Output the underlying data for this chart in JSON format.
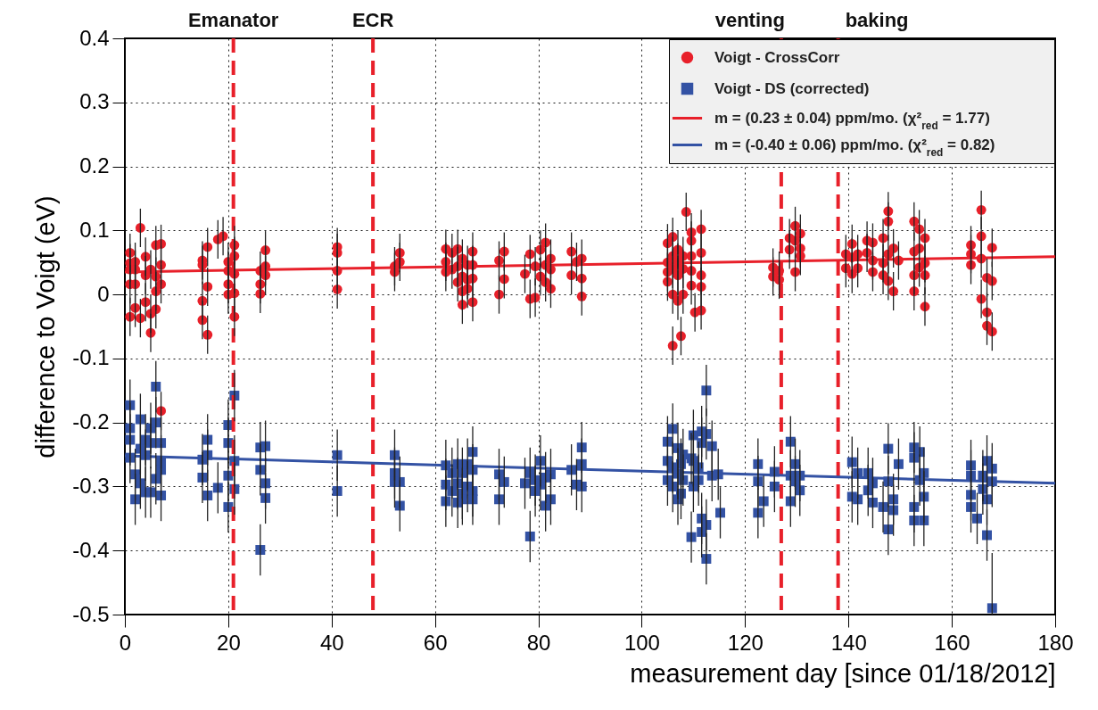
{
  "chart_data": {
    "type": "scatter",
    "xlabel": "measurement day [since 01/18/2012]",
    "ylabel": "difference to Voigt (eV)",
    "xlim": [
      0,
      180
    ],
    "ylim": [
      -0.5,
      0.4
    ],
    "xticks": [
      0,
      20,
      40,
      60,
      80,
      100,
      120,
      140,
      160,
      180
    ],
    "yticks": [
      -0.5,
      -0.4,
      -0.3,
      -0.2,
      -0.1,
      0,
      0.1,
      0.2,
      0.3,
      0.4
    ],
    "grid": true,
    "legend": "top right",
    "ref_lines": [
      {
        "axis": "x",
        "value": 21,
        "label": "Emanator",
        "color": "#e8202a",
        "line_style": "dashed"
      },
      {
        "axis": "x",
        "value": 48,
        "label": "ECR",
        "color": "#e8202a",
        "line_style": "dashed"
      },
      {
        "axis": "x",
        "value": 127,
        "label": "venting",
        "color": "#e8202a",
        "line_style": "dashed"
      },
      {
        "axis": "x",
        "value": 138,
        "label": "baking",
        "color": "#e8202a",
        "line_style": "dashed"
      }
    ],
    "series": [
      {
        "name": "Voigt - CrossCorr",
        "type": "scatter",
        "marker": "circle",
        "color": "#e8202a",
        "x": [
          1,
          1,
          1,
          1,
          1,
          2,
          2,
          2,
          2,
          3,
          3,
          4,
          4,
          4,
          5,
          5,
          5,
          6,
          6,
          6,
          6,
          7,
          7,
          7,
          7,
          15,
          15,
          15,
          15,
          16,
          16,
          16,
          18,
          19,
          20,
          20,
          20,
          20,
          21.2,
          21.2,
          21.2,
          21.2,
          21.2,
          26.2,
          26.2,
          26.2,
          27.2,
          27.2,
          27.2,
          41.1,
          41.1,
          41.1,
          41.1,
          52.2,
          52.2,
          53.2,
          53.2,
          62.1,
          62.1,
          62.1,
          63.3,
          63.3,
          64.4,
          64.4,
          64.4,
          65.3,
          65.3,
          65.3,
          65.3,
          66.3,
          66.3,
          66.3,
          67.3,
          67.3,
          67.3,
          67.3,
          72.4,
          72.4,
          73.4,
          73.4,
          77.4,
          78.4,
          78.4,
          79.4,
          79.4,
          80.4,
          80.4,
          81.4,
          81.4,
          81.4,
          82.4,
          82.4,
          82.4,
          86.4,
          86.4,
          87.4,
          88.4,
          88.4,
          88.4,
          105,
          105,
          105,
          105,
          106,
          106,
          106,
          106,
          106,
          107,
          107,
          107,
          107,
          107.6,
          108,
          108,
          108,
          108.6,
          109.6,
          109.6,
          109.6,
          109.6,
          109.6,
          110.3,
          111.5,
          111.5,
          111.5,
          111.5,
          111.5,
          125.4,
          125.4,
          126.6,
          126.6,
          128.6,
          128.6,
          129.7,
          129.7,
          129.7,
          130.7,
          130.7,
          130.7,
          139.5,
          139.5,
          140.7,
          140.7,
          140.7,
          141.8,
          141.8,
          143.6,
          143.6,
          144.7,
          144.7,
          144.7,
          146.7,
          146.7,
          146.7,
          147.7,
          147.7,
          147.7,
          147.7,
          148.7,
          148.7,
          149.7,
          152.7,
          152.7,
          152.7,
          152.7,
          153.7,
          153.7,
          153.7,
          154.8,
          154.8,
          154.8,
          154.8,
          163.7,
          163.7,
          163.7,
          165.7,
          165.7,
          165.7,
          165.7,
          166.8,
          166.8,
          166.8,
          167.8,
          167.8,
          167.8
        ],
        "values": [
          0.065,
          0.049,
          0.039,
          0.016,
          -0.035,
          0.051,
          0.039,
          0.016,
          -0.021,
          0.104,
          -0.037,
          0.059,
          0.03,
          -0.012,
          0.039,
          -0.03,
          -0.06,
          0.077,
          0.028,
          0.005,
          -0.023,
          0.079,
          0.046,
          0.016,
          -0.182,
          0.053,
          0.046,
          -0.01,
          -0.04,
          0.074,
          0.012,
          -0.063,
          0.086,
          0.091,
          0.051,
          0.037,
          0.016,
          0.0,
          0.077,
          0.06,
          0.032,
          0.002,
          -0.035,
          0.037,
          0.016,
          0.001,
          0.069,
          0.044,
          0.03,
          0.074,
          0.065,
          0.037,
          0.008,
          0.044,
          0.035,
          0.065,
          0.051,
          0.071,
          0.051,
          0.035,
          0.065,
          0.039,
          0.071,
          0.044,
          0.019,
          0.056,
          0.028,
          0.005,
          -0.016,
          0.046,
          0.023,
          0.009,
          0.067,
          0.046,
          0.025,
          -0.012,
          0.053,
          0.0,
          0.067,
          0.024,
          0.032,
          0.063,
          -0.007,
          0.044,
          -0.005,
          0.07,
          0.028,
          0.081,
          0.046,
          0.019,
          0.056,
          0.039,
          0.009,
          0.067,
          0.03,
          0.051,
          0.056,
          0.025,
          -0.003,
          0.08,
          0.05,
          0.035,
          0.02,
          0.09,
          0.06,
          0.04,
          0.0,
          -0.08,
          0.07,
          0.05,
          0.03,
          -0.01,
          -0.065,
          0.06,
          0.04,
          0.0,
          0.129,
          0.097,
          0.084,
          0.06,
          0.037,
          0.014,
          -0.028,
          0.102,
          0.065,
          0.03,
          0.012,
          -0.025,
          0.042,
          0.028,
          0.037,
          0.023,
          0.088,
          0.07,
          0.107,
          0.084,
          0.035,
          0.095,
          0.072,
          0.06,
          0.063,
          0.041,
          0.079,
          0.058,
          0.032,
          0.063,
          0.041,
          0.084,
          0.065,
          0.081,
          0.053,
          0.035,
          0.088,
          0.049,
          0.03,
          0.13,
          0.114,
          0.063,
          0.021,
          0.072,
          0.005,
          0.053,
          0.114,
          0.067,
          0.03,
          0.005,
          0.102,
          0.072,
          0.042,
          0.088,
          0.049,
          0.03,
          -0.019,
          0.077,
          0.063,
          0.046,
          0.132,
          0.091,
          0.056,
          -0.007,
          0.026,
          -0.028,
          -0.049,
          0.073,
          0.021,
          -0.058
        ],
        "errors": [
          0.03,
          0.03,
          0.03,
          0.03,
          0.03,
          0.03,
          0.03,
          0.03,
          0.03,
          0.03,
          0.03,
          0.03,
          0.03,
          0.03,
          0.03,
          0.03,
          0.03,
          0.03,
          0.03,
          0.03,
          0.03,
          0.03,
          0.03,
          0.03,
          0.03,
          0.03,
          0.03,
          0.03,
          0.03,
          0.03,
          0.03,
          0.03,
          0.03,
          0.03,
          0.03,
          0.03,
          0.03,
          0.03,
          0.03,
          0.03,
          0.03,
          0.03,
          0.03,
          0.03,
          0.03,
          0.03,
          0.03,
          0.03,
          0.03,
          0.03,
          0.03,
          0.03,
          0.03,
          0.03,
          0.03,
          0.03,
          0.03,
          0.03,
          0.03,
          0.03,
          0.03,
          0.03,
          0.03,
          0.03,
          0.03,
          0.03,
          0.03,
          0.03,
          0.03,
          0.03,
          0.03,
          0.03,
          0.03,
          0.03,
          0.03,
          0.03,
          0.03,
          0.03,
          0.03,
          0.03,
          0.03,
          0.03,
          0.03,
          0.03,
          0.03,
          0.03,
          0.03,
          0.03,
          0.03,
          0.03,
          0.03,
          0.03,
          0.03,
          0.03,
          0.03,
          0.03,
          0.03,
          0.03,
          0.03,
          0.03,
          0.03,
          0.03,
          0.03,
          0.03,
          0.03,
          0.03,
          0.03,
          0.03,
          0.03,
          0.03,
          0.03,
          0.03,
          0.03,
          0.03,
          0.03,
          0.03,
          0.03,
          0.03,
          0.03,
          0.03,
          0.03,
          0.03,
          0.03,
          0.03,
          0.03,
          0.03,
          0.03,
          0.03,
          0.03,
          0.03,
          0.03,
          0.03,
          0.03,
          0.03,
          0.03,
          0.03,
          0.03,
          0.03,
          0.03,
          0.03,
          0.03,
          0.03,
          0.03,
          0.03,
          0.03,
          0.03,
          0.03,
          0.03,
          0.03,
          0.03,
          0.03,
          0.03,
          0.03,
          0.03,
          0.03,
          0.03,
          0.03,
          0.03,
          0.03,
          0.03,
          0.03,
          0.03,
          0.03,
          0.03,
          0.03,
          0.03,
          0.03,
          0.03,
          0.03,
          0.03,
          0.03,
          0.03,
          0.03,
          0.03,
          0.03,
          0.03,
          0.03,
          0.03,
          0.03,
          0.03,
          0.03,
          0.03,
          0.03,
          0.03,
          0.03,
          0.03
        ]
      },
      {
        "name": "Voigt - DS (corrected)",
        "type": "scatter",
        "marker": "square",
        "color": "#3352a4",
        "x": [
          1,
          1,
          1,
          1,
          2,
          2,
          3,
          3,
          3,
          4,
          4,
          4,
          5,
          5,
          5,
          6,
          6,
          6,
          7,
          7,
          7,
          7,
          15,
          15,
          16,
          16,
          16,
          18,
          20,
          20,
          20,
          20,
          21.2,
          21.2,
          21.2,
          26.2,
          26.2,
          26.2,
          27.2,
          27.2,
          27.2,
          41.1,
          41.1,
          52.2,
          52.2,
          52.2,
          53.2,
          53.2,
          62.1,
          62.1,
          62.1,
          63.3,
          63.3,
          64.4,
          64.4,
          64.4,
          65.3,
          65.3,
          65.3,
          66.3,
          66.3,
          67.3,
          67.3,
          67.3,
          67.3,
          72.4,
          72.4,
          73.4,
          77.4,
          78.4,
          78.4,
          79.4,
          79.4,
          80.4,
          80.4,
          81.4,
          81.4,
          82.4,
          82.4,
          86.4,
          87.4,
          88.4,
          88.4,
          88.4,
          105,
          105,
          105,
          106,
          106,
          106,
          107,
          107,
          107,
          107.6,
          107.6,
          108,
          108,
          109.6,
          109.6,
          110,
          110,
          110,
          111,
          111,
          111.6,
          111.6,
          111.6,
          111.6,
          112.5,
          112.5,
          112.5,
          112.5,
          113.6,
          113.6,
          114.8,
          115.2,
          122.5,
          122.5,
          122.5,
          123.6,
          125.7,
          125.7,
          128.8,
          128.8,
          128.8,
          129.7,
          129.7,
          130.6,
          130.6,
          140.7,
          140.7,
          141.8,
          141.8,
          143.8,
          143.8,
          144.7,
          144.7,
          146.7,
          147.7,
          147.7,
          147.7,
          148.7,
          148.7,
          149.7,
          152.7,
          152.7,
          152.7,
          152.7,
          153.8,
          153.8,
          154.6,
          154.6,
          154.6,
          163.7,
          163.7,
          163.7,
          163.7,
          164.9,
          166.0,
          166.0,
          166.8,
          166.8,
          166.8,
          167.8,
          167.8,
          167.8
        ],
        "values": [
          -0.173,
          -0.209,
          -0.227,
          -0.255,
          -0.281,
          -0.32,
          -0.195,
          -0.241,
          -0.295,
          -0.227,
          -0.251,
          -0.309,
          -0.209,
          -0.232,
          -0.309,
          -0.144,
          -0.2,
          -0.288,
          -0.232,
          -0.26,
          -0.274,
          -0.314,
          -0.258,
          -0.286,
          -0.227,
          -0.251,
          -0.314,
          -0.302,
          -0.204,
          -0.232,
          -0.283,
          -0.332,
          -0.158,
          -0.26,
          -0.304,
          -0.239,
          -0.274,
          -0.399,
          -0.237,
          -0.295,
          -0.318,
          -0.251,
          -0.307,
          -0.251,
          -0.279,
          -0.293,
          -0.293,
          -0.33,
          -0.267,
          -0.297,
          -0.323,
          -0.279,
          -0.307,
          -0.265,
          -0.295,
          -0.325,
          -0.279,
          -0.311,
          -0.32,
          -0.265,
          -0.3,
          -0.246,
          -0.274,
          -0.307,
          -0.32,
          -0.281,
          -0.32,
          -0.293,
          -0.295,
          -0.279,
          -0.378,
          -0.29,
          -0.307,
          -0.26,
          -0.297,
          -0.286,
          -0.33,
          -0.281,
          -0.32,
          -0.274,
          -0.297,
          -0.239,
          -0.265,
          -0.3,
          -0.23,
          -0.26,
          -0.29,
          -0.21,
          -0.27,
          -0.3,
          -0.24,
          -0.28,
          -0.32,
          -0.265,
          -0.311,
          -0.25,
          -0.29,
          -0.256,
          -0.379,
          -0.22,
          -0.26,
          -0.3,
          -0.27,
          -0.29,
          -0.214,
          -0.232,
          -0.35,
          -0.371,
          -0.15,
          -0.218,
          -0.36,
          -0.413,
          -0.237,
          -0.283,
          -0.281,
          -0.341,
          -0.265,
          -0.292,
          -0.341,
          -0.323,
          -0.277,
          -0.3,
          -0.23,
          -0.283,
          -0.323,
          -0.265,
          -0.292,
          -0.283,
          -0.306,
          -0.262,
          -0.316,
          -0.279,
          -0.32,
          -0.279,
          -0.306,
          -0.295,
          -0.325,
          -0.332,
          -0.241,
          -0.292,
          -0.367,
          -0.32,
          -0.337,
          -0.265,
          -0.239,
          -0.255,
          -0.332,
          -0.353,
          -0.246,
          -0.29,
          -0.279,
          -0.316,
          -0.353,
          -0.267,
          -0.283,
          -0.313,
          -0.332,
          -0.35,
          -0.283,
          -0.304,
          -0.26,
          -0.32,
          -0.376,
          -0.272,
          -0.292,
          -0.49
        ],
        "errors": [
          0.04,
          0.04,
          0.04,
          0.04,
          0.04,
          0.04,
          0.04,
          0.04,
          0.04,
          0.04,
          0.04,
          0.04,
          0.04,
          0.04,
          0.04,
          0.04,
          0.04,
          0.04,
          0.04,
          0.04,
          0.04,
          0.04,
          0.04,
          0.04,
          0.04,
          0.04,
          0.04,
          0.04,
          0.04,
          0.04,
          0.04,
          0.04,
          0.04,
          0.04,
          0.04,
          0.04,
          0.04,
          0.04,
          0.04,
          0.04,
          0.04,
          0.04,
          0.04,
          0.04,
          0.04,
          0.04,
          0.04,
          0.04,
          0.04,
          0.04,
          0.04,
          0.04,
          0.04,
          0.04,
          0.04,
          0.04,
          0.04,
          0.04,
          0.04,
          0.04,
          0.04,
          0.04,
          0.04,
          0.04,
          0.04,
          0.04,
          0.04,
          0.04,
          0.04,
          0.04,
          0.04,
          0.04,
          0.04,
          0.04,
          0.04,
          0.04,
          0.04,
          0.04,
          0.04,
          0.04,
          0.04,
          0.04,
          0.04,
          0.04,
          0.04,
          0.04,
          0.04,
          0.04,
          0.04,
          0.04,
          0.04,
          0.04,
          0.04,
          0.04,
          0.04,
          0.04,
          0.04,
          0.04,
          0.04,
          0.04,
          0.04,
          0.04,
          0.04,
          0.04,
          0.04,
          0.04,
          0.04,
          0.04,
          0.04,
          0.04,
          0.04,
          0.04,
          0.04,
          0.04,
          0.04,
          0.04,
          0.04,
          0.04,
          0.04,
          0.04,
          0.04,
          0.04,
          0.04,
          0.04,
          0.04,
          0.04,
          0.04,
          0.04,
          0.04,
          0.04,
          0.04,
          0.04,
          0.04,
          0.04,
          0.04,
          0.04,
          0.04,
          0.04,
          0.04,
          0.04,
          0.04,
          0.04,
          0.04,
          0.04,
          0.04,
          0.04,
          0.04,
          0.04,
          0.04,
          0.04,
          0.04,
          0.04,
          0.04,
          0.04,
          0.04,
          0.04,
          0.04,
          0.04,
          0.04,
          0.04,
          0.04,
          0.04,
          0.04,
          0.04,
          0.04,
          [
            -0.5,
            -0.404
          ]
        ]
      },
      {
        "name": "m = (0.23 ± 0.04) ppm/mo.  (χ²$_{red}$ = 1.77)",
        "type": "line",
        "color": "#e8202a",
        "x": [
          0,
          180
        ],
        "values": [
          0.035,
          0.059
        ]
      },
      {
        "name": "m = (-0.40 ± 0.06) ppm/mo.  (χ²$_{red}$ = 0.82)",
        "type": "line",
        "color": "#3352a4",
        "x": [
          0,
          180
        ],
        "values": [
          -0.252,
          -0.295
        ]
      }
    ]
  }
}
